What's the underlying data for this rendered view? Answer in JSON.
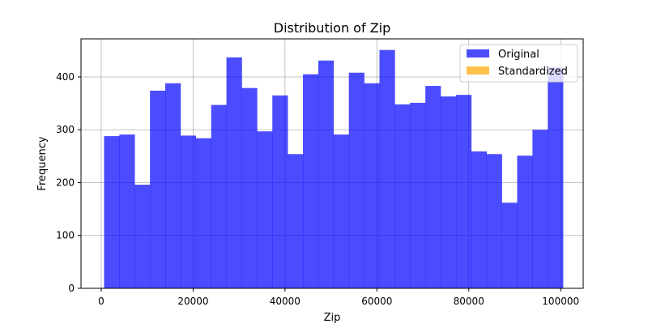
{
  "chart_data": {
    "type": "histogram",
    "title": "Distribution of Zip",
    "xlabel": "Zip",
    "ylabel": "Frequency",
    "xlim": [
      -4400,
      104900
    ],
    "ylim": [
      0,
      472
    ],
    "xticks": [
      0,
      20000,
      40000,
      60000,
      80000,
      100000
    ],
    "yticks": [
      0,
      100,
      200,
      300,
      400
    ],
    "grid": true,
    "legend_position": "top-right",
    "bin_edges": [
      617,
      3947,
      7277,
      10607,
      13937,
      17267,
      20597,
      23927,
      27257,
      30587,
      33917,
      37247,
      40577,
      43907,
      47237,
      50567,
      53897,
      57227,
      60557,
      63887,
      67217,
      70547,
      73877,
      77207,
      80537,
      83867,
      87197,
      90527,
      93857,
      97187,
      100517
    ],
    "series": [
      {
        "name": "Original",
        "color": "#0000ff",
        "opacity": 0.7,
        "counts": [
          288,
          291,
          196,
          374,
          388,
          289,
          284,
          347,
          437,
          379,
          297,
          365,
          254,
          405,
          431,
          291,
          408,
          388,
          451,
          348,
          351,
          383,
          363,
          366,
          259,
          254,
          162,
          251,
          300,
          418
        ]
      },
      {
        "name": "Standardized",
        "color": "#ffa500",
        "opacity": 0.7,
        "counts": []
      }
    ]
  }
}
